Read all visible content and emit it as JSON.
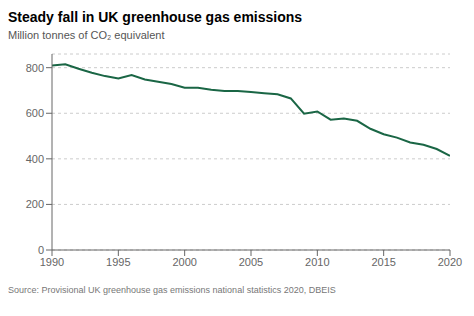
{
  "chart_data": {
    "type": "line",
    "title": "Steady fall in UK greenhouse gas emissions",
    "subtitle": "Million tonnes of CO₂ equivalent",
    "annotations": [
      "Source: Provisional UK greenhouse gas emissions national statistics 2020, DBEIS"
    ],
    "x": [
      1990,
      1991,
      1992,
      1993,
      1994,
      1995,
      1996,
      1997,
      1998,
      1999,
      2000,
      2001,
      2002,
      2003,
      2004,
      2005,
      2006,
      2007,
      2008,
      2009,
      2010,
      2011,
      2012,
      2013,
      2014,
      2015,
      2016,
      2017,
      2018,
      2019,
      2020
    ],
    "values": [
      810,
      815,
      795,
      778,
      763,
      753,
      768,
      748,
      738,
      728,
      712,
      712,
      703,
      698,
      698,
      693,
      688,
      683,
      665,
      598,
      608,
      572,
      577,
      567,
      532,
      508,
      493,
      472,
      462,
      443,
      413
    ],
    "color": "#1a6645",
    "xlim": [
      1990,
      2020
    ],
    "ylim": [
      0,
      860
    ],
    "xticks": [
      1990,
      1995,
      2000,
      2005,
      2010,
      2015,
      2020
    ],
    "yticks": [
      0,
      200,
      400,
      600,
      800
    ],
    "grid": true
  }
}
